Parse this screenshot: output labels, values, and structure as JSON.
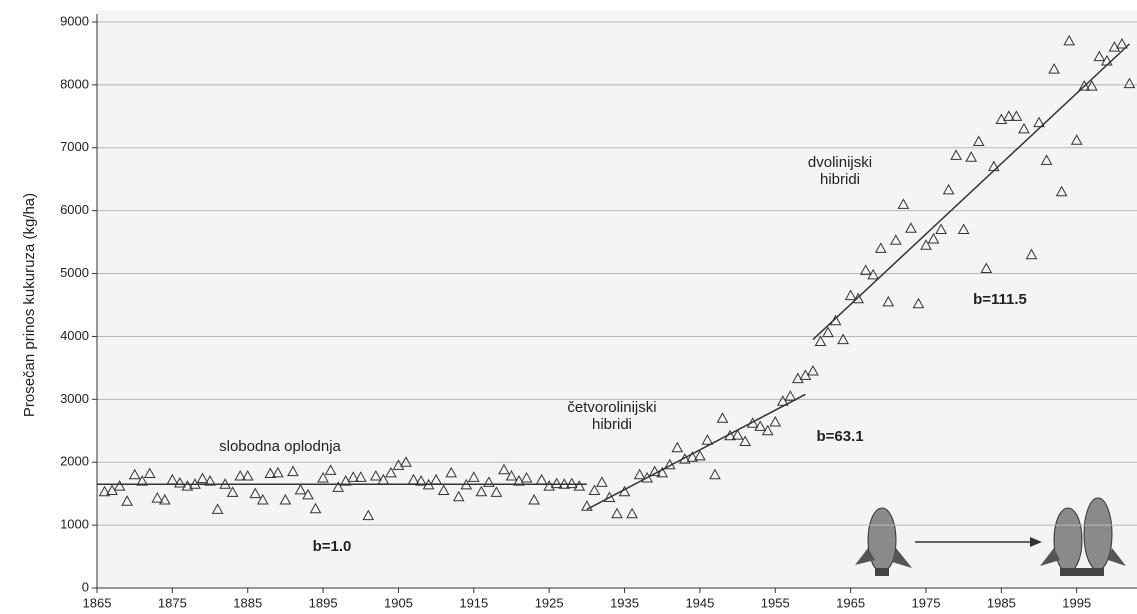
{
  "chart_data": {
    "type": "scatter",
    "y_label": "Prosečan prinos kukuruza (kg/ha)",
    "xlim": [
      1865,
      2003
    ],
    "ylim": [
      0,
      9000
    ],
    "xticks": [
      1865,
      1875,
      1885,
      1895,
      1905,
      1915,
      1925,
      1935,
      1945,
      1955,
      1965,
      1975,
      1985,
      1995
    ],
    "yticks": [
      0,
      1000,
      2000,
      3000,
      4000,
      5000,
      6000,
      7000,
      8000,
      9000
    ],
    "grid": true,
    "marker": "triangle",
    "color": "#333333",
    "x": [
      1866,
      1867,
      1868,
      1869,
      1870,
      1871,
      1872,
      1873,
      1874,
      1875,
      1876,
      1877,
      1878,
      1879,
      1880,
      1881,
      1882,
      1883,
      1884,
      1885,
      1886,
      1887,
      1888,
      1889,
      1890,
      1891,
      1892,
      1893,
      1894,
      1895,
      1896,
      1897,
      1898,
      1899,
      1900,
      1901,
      1902,
      1903,
      1904,
      1905,
      1906,
      1907,
      1908,
      1909,
      1910,
      1911,
      1912,
      1913,
      1914,
      1915,
      1916,
      1917,
      1918,
      1919,
      1920,
      1921,
      1922,
      1923,
      1924,
      1925,
      1926,
      1927,
      1928,
      1929,
      1930,
      1931,
      1932,
      1933,
      1934,
      1935,
      1936,
      1937,
      1938,
      1939,
      1940,
      1941,
      1942,
      1943,
      1944,
      1945,
      1946,
      1947,
      1948,
      1949,
      1950,
      1951,
      1952,
      1953,
      1954,
      1955,
      1956,
      1957,
      1958,
      1959,
      1960,
      1961,
      1962,
      1963,
      1964,
      1965,
      1966,
      1967,
      1968,
      1969,
      1970,
      1971,
      1972,
      1973,
      1974,
      1975,
      1976,
      1977,
      1978,
      1979,
      1980,
      1981,
      1982,
      1983,
      1984,
      1985,
      1986,
      1987,
      1988,
      1989,
      1990,
      1991,
      1992,
      1993,
      1994,
      1995,
      1996,
      1997,
      1998,
      1999,
      2000,
      2001,
      2002
    ],
    "values": [
      1530,
      1550,
      1620,
      1380,
      1800,
      1700,
      1820,
      1430,
      1400,
      1720,
      1670,
      1620,
      1650,
      1740,
      1700,
      1250,
      1650,
      1520,
      1780,
      1780,
      1500,
      1400,
      1820,
      1830,
      1400,
      1850,
      1560,
      1480,
      1260,
      1750,
      1870,
      1600,
      1700,
      1760,
      1760,
      1150,
      1780,
      1720,
      1830,
      1950,
      2000,
      1720,
      1700,
      1640,
      1720,
      1550,
      1830,
      1450,
      1640,
      1760,
      1530,
      1680,
      1520,
      1880,
      1780,
      1700,
      1750,
      1400,
      1720,
      1620,
      1660,
      1650,
      1660,
      1620,
      1300,
      1550,
      1680,
      1440,
      1180,
      1530,
      1180,
      1800,
      1750,
      1850,
      1830,
      1960,
      2230,
      2050,
      2080,
      2100,
      2350,
      1800,
      2700,
      2420,
      2430,
      2330,
      2620,
      2570,
      2500,
      2640,
      2970,
      3050,
      3330,
      3380,
      3450,
      3920,
      4060,
      4250,
      3950,
      4650,
      4600,
      5050,
      4980,
      5400,
      4550,
      5530,
      6100,
      5720,
      4520,
      5450,
      5550,
      5700,
      6330,
      6880,
      5700,
      6850,
      7100,
      5080,
      6700,
      7450,
      7500,
      7500,
      7300,
      5300,
      7400,
      6800,
      8250,
      6300,
      8700,
      7120,
      7980,
      7980,
      8450,
      8380,
      8600,
      8650,
      8020
    ],
    "trend_lines": [
      {
        "x": [
          1865,
          1930
        ],
        "y": [
          1650,
          1650
        ]
      },
      {
        "x": [
          1930,
          1959
        ],
        "y": [
          1250,
          3080
        ]
      },
      {
        "x": [
          1960,
          2002
        ],
        "y": [
          3950,
          8650
        ]
      }
    ],
    "annotations": [
      {
        "text": [
          "slobodna oplodnja"
        ]
      },
      {
        "text": [
          "b=1.0"
        ]
      },
      {
        "text": [
          "četvorolinijski",
          "hibridi"
        ]
      },
      {
        "text": [
          "b=63.1"
        ]
      },
      {
        "text": [
          "dvolinijski",
          "hibridi"
        ]
      },
      {
        "text": [
          "b=111.5"
        ]
      }
    ]
  }
}
